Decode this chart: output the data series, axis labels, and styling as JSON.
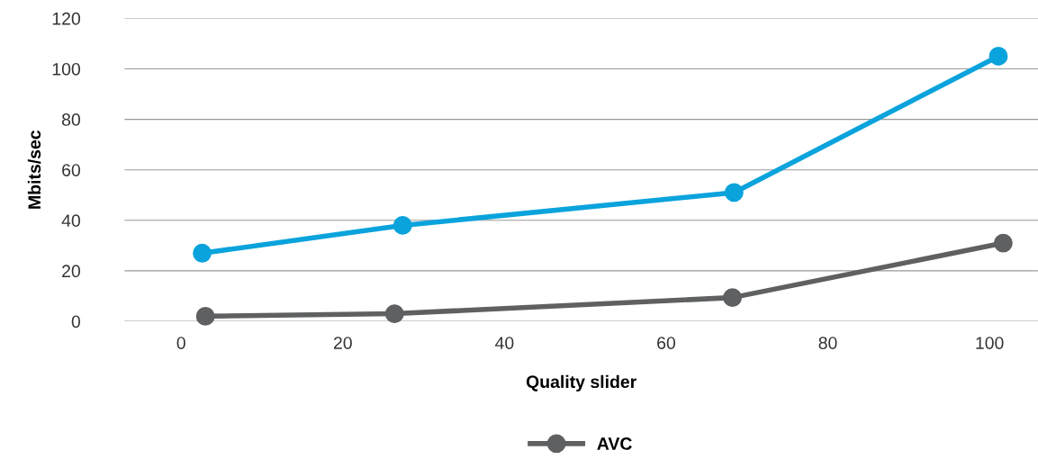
{
  "chart_data": {
    "type": "line",
    "xlabel": "Quality slider",
    "ylabel": "Mbits/sec",
    "xlim": [
      -7,
      106
    ],
    "xticks": [
      0,
      20,
      40,
      60,
      80,
      100
    ],
    "ylim": [
      0,
      120
    ],
    "yticks": [
      0,
      20,
      40,
      60,
      80,
      100,
      120
    ],
    "grid": "y",
    "legend": "bottom",
    "marker": "circle",
    "line_style": "solid",
    "series": [
      {
        "color": "#0aa3dc",
        "x": [
          2.6,
          27.4,
          68.4,
          101.1
        ],
        "values": [
          27,
          38,
          51,
          105
        ]
      },
      {
        "name": "AVC",
        "color": "#5f6062",
        "x": [
          3,
          26.4,
          68.2,
          101.7
        ],
        "values": [
          2,
          3,
          9.4,
          31
        ]
      }
    ]
  }
}
